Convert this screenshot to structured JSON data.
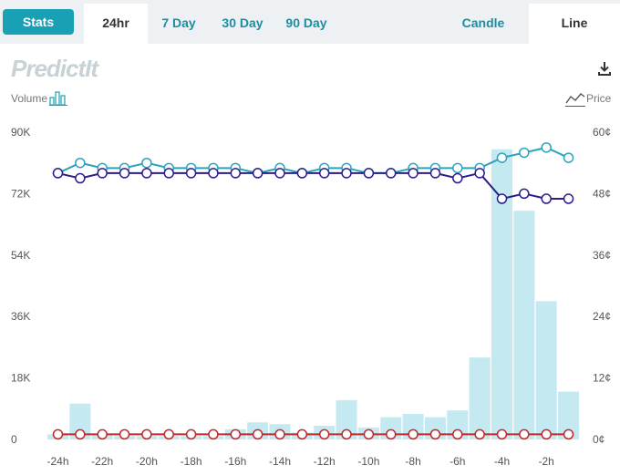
{
  "toolbar": {
    "stats_label": "Stats",
    "tabs": [
      "24hr",
      "7 Day",
      "30 Day",
      "90 Day"
    ],
    "active_tab": "24hr",
    "view_modes": [
      "Candle",
      "Line"
    ],
    "active_view": "Line"
  },
  "logo_text": "PredictIt",
  "legend": {
    "volume_label": "Volume",
    "price_label": "Price"
  },
  "icons": {
    "download": "download-icon",
    "volume": "bar-chart-icon",
    "price": "line-chart-icon"
  },
  "colors": {
    "accent": "#1aa0b4",
    "bars": "#c5e9f1",
    "series_a": "#2aa3bd",
    "series_b": "#2b1d8c",
    "series_c": "#c0282b"
  },
  "chart_data": {
    "type": "line",
    "x_tick_labels": [
      "-24h",
      "-22h",
      "-20h",
      "-18h",
      "-16h",
      "-14h",
      "-12h",
      "-10h",
      "-8h",
      "-6h",
      "-4h",
      "-2h"
    ],
    "left_axis": {
      "ticks": [
        "0",
        "18K",
        "36K",
        "54K",
        "72K",
        "90K"
      ],
      "ylim": [
        0,
        90000
      ]
    },
    "right_axis": {
      "ticks": [
        "0¢",
        "12¢",
        "24¢",
        "36¢",
        "48¢",
        "60¢"
      ],
      "ylim": [
        0,
        60
      ]
    },
    "x": [
      -24,
      -23,
      -22,
      -21,
      -20,
      -19,
      -18,
      -17,
      -16,
      -15,
      -14,
      -13,
      -12,
      -11,
      -10,
      -9,
      -8,
      -7,
      -6,
      -5,
      -4,
      -3,
      -2,
      -1
    ],
    "volume": [
      1500,
      10500,
      1200,
      1000,
      1000,
      1000,
      1000,
      1000,
      3000,
      5000,
      4500,
      2000,
      4000,
      11500,
      3500,
      6500,
      7500,
      6500,
      8500,
      24000,
      85000,
      67000,
      40500,
      14000
    ],
    "series": [
      {
        "values": [
          52,
          54,
          53,
          53,
          54,
          53,
          53,
          53,
          53,
          52,
          53,
          52,
          53,
          53,
          52,
          52,
          53,
          53,
          53,
          53,
          55,
          56,
          57,
          55
        ]
      },
      {
        "values": [
          52,
          51,
          52,
          52,
          52,
          52,
          52,
          52,
          52,
          52,
          52,
          52,
          52,
          52,
          52,
          52,
          52,
          52,
          51,
          52,
          47,
          48,
          47,
          47
        ]
      },
      {
        "values": [
          1,
          1,
          1,
          1,
          1,
          1,
          1,
          1,
          1,
          1,
          1,
          1,
          1,
          1,
          1,
          1,
          1,
          1,
          1,
          1,
          1,
          1,
          1,
          1
        ]
      }
    ]
  }
}
